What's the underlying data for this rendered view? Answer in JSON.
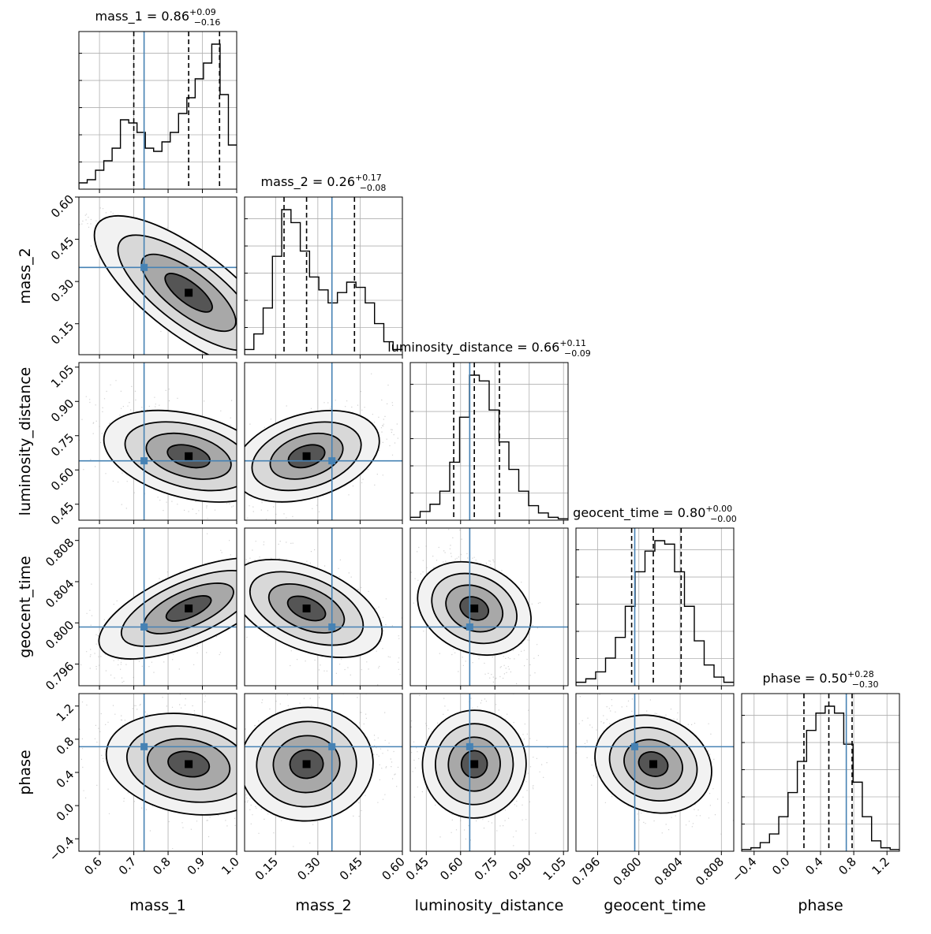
{
  "chart_data": {
    "type": "corner",
    "parameters": [
      {
        "name": "mass_1",
        "median": "0.86",
        "plus": "+0.09",
        "minus": "−0.16",
        "truth": 0.73,
        "range": [
          0.54,
          1.0
        ],
        "ticks": [
          0.6,
          0.7,
          0.8,
          0.9,
          1.0
        ],
        "tick_labels": [
          "0.6",
          "0.7",
          "0.8",
          "0.9",
          "1.0"
        ],
        "quantiles": [
          0.7,
          0.86,
          0.95
        ]
      },
      {
        "name": "mass_2",
        "median": "0.26",
        "plus": "+0.17",
        "minus": "−0.08",
        "truth": 0.35,
        "range": [
          0.04,
          0.6
        ],
        "ticks": [
          0.15,
          0.3,
          0.45,
          0.6
        ],
        "tick_labels": [
          "0.15",
          "0.30",
          "0.45",
          "0.60"
        ],
        "quantiles": [
          0.18,
          0.26,
          0.43
        ]
      },
      {
        "name": "luminosity_distance",
        "median": "0.66",
        "plus": "+0.11",
        "minus": "−0.09",
        "truth": 0.64,
        "range": [
          0.38,
          1.07
        ],
        "ticks": [
          0.45,
          0.6,
          0.75,
          0.9,
          1.05
        ],
        "tick_labels": [
          "0.45",
          "0.60",
          "0.75",
          "0.90",
          "1.05"
        ],
        "quantiles": [
          0.57,
          0.66,
          0.77
        ]
      },
      {
        "name": "geocent_time",
        "median": "0.80",
        "plus": "+0.00",
        "minus": "−0.00",
        "truth": 0.7996,
        "range": [
          0.7939,
          0.8092
        ],
        "ticks": [
          0.796,
          0.8,
          0.804,
          0.808
        ],
        "tick_labels": [
          "0.796",
          "0.800",
          "0.804",
          "0.808"
        ],
        "quantiles": [
          0.7993,
          0.8014,
          0.8041
        ]
      },
      {
        "name": "phase",
        "median": "0.50",
        "plus": "+0.28",
        "minus": "−0.30",
        "truth": 0.71,
        "range": [
          -0.55,
          1.35
        ],
        "ticks": [
          -0.4,
          0.0,
          0.4,
          0.8,
          1.2
        ],
        "tick_labels": [
          "−0.4",
          "0.0",
          "0.4",
          "0.8",
          "1.2"
        ],
        "quantiles": [
          0.2,
          0.5,
          0.78
        ]
      }
    ],
    "histograms": [
      [
        2,
        3,
        6,
        9,
        13,
        22,
        21,
        18,
        13,
        12,
        15,
        18,
        24,
        29,
        35,
        40,
        46,
        30,
        14
      ],
      [
        2,
        8,
        18,
        38,
        56,
        51,
        40,
        30,
        25,
        20,
        24,
        28,
        26,
        20,
        12,
        5,
        2
      ],
      [
        2,
        6,
        11,
        20,
        40,
        71,
        100,
        96,
        76,
        54,
        35,
        20,
        10,
        5,
        2,
        1
      ],
      [
        2,
        4,
        8,
        16,
        28,
        46,
        66,
        78,
        84,
        82,
        66,
        46,
        26,
        12,
        5,
        2
      ],
      [
        1,
        2,
        5,
        10,
        20,
        34,
        52,
        70,
        80,
        84,
        80,
        62,
        40,
        20,
        6,
        2,
        1
      ]
    ],
    "correlations": [
      [
        0,
        -0.93,
        -0.48,
        0.75,
        -0.32
      ],
      [
        -0.93,
        0,
        0.48,
        -0.6,
        0.1
      ],
      [
        -0.48,
        0.48,
        0,
        -0.42,
        -0.1
      ],
      [
        0.75,
        -0.6,
        -0.42,
        0,
        -0.38
      ],
      [
        -0.32,
        0.1,
        -0.1,
        -0.38,
        0
      ]
    ],
    "truth_color": "#4682b4",
    "grid": true
  }
}
